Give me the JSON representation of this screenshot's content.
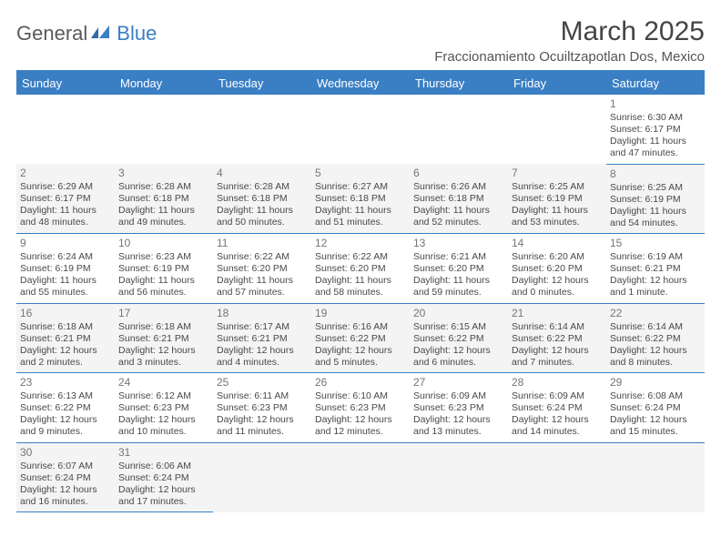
{
  "logo": {
    "text_left": "General",
    "text_right": "Blue"
  },
  "header": {
    "month_title": "March 2025",
    "location": "Fraccionamiento Ocuiltzapotlan Dos, Mexico"
  },
  "colors": {
    "accent": "#3a7fc4",
    "header_text": "#ffffff",
    "body_text": "#494949",
    "alt_row_bg": "#f4f4f4",
    "background": "#ffffff"
  },
  "calendar": {
    "day_headers": [
      "Sunday",
      "Monday",
      "Tuesday",
      "Wednesday",
      "Thursday",
      "Friday",
      "Saturday"
    ],
    "weeks": [
      [
        null,
        null,
        null,
        null,
        null,
        null,
        {
          "day": "1",
          "sunrise": "6:30 AM",
          "sunset": "6:17 PM",
          "daylight": "11 hours and 47 minutes."
        }
      ],
      [
        {
          "day": "2",
          "sunrise": "6:29 AM",
          "sunset": "6:17 PM",
          "daylight": "11 hours and 48 minutes."
        },
        {
          "day": "3",
          "sunrise": "6:28 AM",
          "sunset": "6:18 PM",
          "daylight": "11 hours and 49 minutes."
        },
        {
          "day": "4",
          "sunrise": "6:28 AM",
          "sunset": "6:18 PM",
          "daylight": "11 hours and 50 minutes."
        },
        {
          "day": "5",
          "sunrise": "6:27 AM",
          "sunset": "6:18 PM",
          "daylight": "11 hours and 51 minutes."
        },
        {
          "day": "6",
          "sunrise": "6:26 AM",
          "sunset": "6:18 PM",
          "daylight": "11 hours and 52 minutes."
        },
        {
          "day": "7",
          "sunrise": "6:25 AM",
          "sunset": "6:19 PM",
          "daylight": "11 hours and 53 minutes."
        },
        {
          "day": "8",
          "sunrise": "6:25 AM",
          "sunset": "6:19 PM",
          "daylight": "11 hours and 54 minutes."
        }
      ],
      [
        {
          "day": "9",
          "sunrise": "6:24 AM",
          "sunset": "6:19 PM",
          "daylight": "11 hours and 55 minutes."
        },
        {
          "day": "10",
          "sunrise": "6:23 AM",
          "sunset": "6:19 PM",
          "daylight": "11 hours and 56 minutes."
        },
        {
          "day": "11",
          "sunrise": "6:22 AM",
          "sunset": "6:20 PM",
          "daylight": "11 hours and 57 minutes."
        },
        {
          "day": "12",
          "sunrise": "6:22 AM",
          "sunset": "6:20 PM",
          "daylight": "11 hours and 58 minutes."
        },
        {
          "day": "13",
          "sunrise": "6:21 AM",
          "sunset": "6:20 PM",
          "daylight": "11 hours and 59 minutes."
        },
        {
          "day": "14",
          "sunrise": "6:20 AM",
          "sunset": "6:20 PM",
          "daylight": "12 hours and 0 minutes."
        },
        {
          "day": "15",
          "sunrise": "6:19 AM",
          "sunset": "6:21 PM",
          "daylight": "12 hours and 1 minute."
        }
      ],
      [
        {
          "day": "16",
          "sunrise": "6:18 AM",
          "sunset": "6:21 PM",
          "daylight": "12 hours and 2 minutes."
        },
        {
          "day": "17",
          "sunrise": "6:18 AM",
          "sunset": "6:21 PM",
          "daylight": "12 hours and 3 minutes."
        },
        {
          "day": "18",
          "sunrise": "6:17 AM",
          "sunset": "6:21 PM",
          "daylight": "12 hours and 4 minutes."
        },
        {
          "day": "19",
          "sunrise": "6:16 AM",
          "sunset": "6:22 PM",
          "daylight": "12 hours and 5 minutes."
        },
        {
          "day": "20",
          "sunrise": "6:15 AM",
          "sunset": "6:22 PM",
          "daylight": "12 hours and 6 minutes."
        },
        {
          "day": "21",
          "sunrise": "6:14 AM",
          "sunset": "6:22 PM",
          "daylight": "12 hours and 7 minutes."
        },
        {
          "day": "22",
          "sunrise": "6:14 AM",
          "sunset": "6:22 PM",
          "daylight": "12 hours and 8 minutes."
        }
      ],
      [
        {
          "day": "23",
          "sunrise": "6:13 AM",
          "sunset": "6:22 PM",
          "daylight": "12 hours and 9 minutes."
        },
        {
          "day": "24",
          "sunrise": "6:12 AM",
          "sunset": "6:23 PM",
          "daylight": "12 hours and 10 minutes."
        },
        {
          "day": "25",
          "sunrise": "6:11 AM",
          "sunset": "6:23 PM",
          "daylight": "12 hours and 11 minutes."
        },
        {
          "day": "26",
          "sunrise": "6:10 AM",
          "sunset": "6:23 PM",
          "daylight": "12 hours and 12 minutes."
        },
        {
          "day": "27",
          "sunrise": "6:09 AM",
          "sunset": "6:23 PM",
          "daylight": "12 hours and 13 minutes."
        },
        {
          "day": "28",
          "sunrise": "6:09 AM",
          "sunset": "6:24 PM",
          "daylight": "12 hours and 14 minutes."
        },
        {
          "day": "29",
          "sunrise": "6:08 AM",
          "sunset": "6:24 PM",
          "daylight": "12 hours and 15 minutes."
        }
      ],
      [
        {
          "day": "30",
          "sunrise": "6:07 AM",
          "sunset": "6:24 PM",
          "daylight": "12 hours and 16 minutes."
        },
        {
          "day": "31",
          "sunrise": "6:06 AM",
          "sunset": "6:24 PM",
          "daylight": "12 hours and 17 minutes."
        },
        null,
        null,
        null,
        null,
        null
      ]
    ],
    "labels": {
      "sunrise": "Sunrise:",
      "sunset": "Sunset:",
      "daylight": "Daylight:"
    }
  }
}
